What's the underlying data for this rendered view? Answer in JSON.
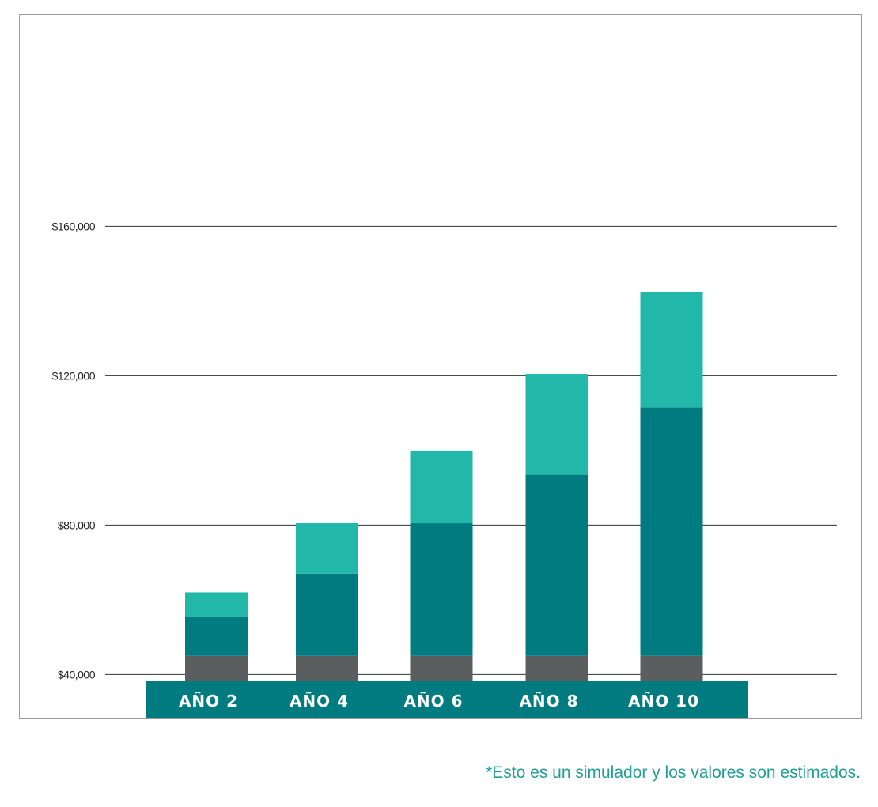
{
  "chart_data": {
    "type": "bar",
    "stacked": true,
    "categories": [
      "AÑO 2",
      "AÑO 4",
      "AÑO 6",
      "AÑO 8",
      "AÑO 10"
    ],
    "series": [
      {
        "color": "#5a5e5e",
        "values": [
          45000,
          45000,
          45000,
          45000,
          45000
        ]
      },
      {
        "color": "#007b7f",
        "values": [
          10500,
          22000,
          35500,
          48500,
          66500
        ]
      },
      {
        "color": "#21b8aa",
        "values": [
          6500,
          13500,
          19500,
          27000,
          31000
        ]
      }
    ],
    "y_ticks": [
      {
        "value": 40000,
        "label": "$40,000"
      },
      {
        "value": 80000,
        "label": "$80,000"
      },
      {
        "value": 120000,
        "label": "$120,000"
      },
      {
        "value": 160000,
        "label": "$160,000"
      }
    ],
    "ylim": [
      0,
      160000
    ],
    "grid": true,
    "category_band_color": "#007b7f",
    "title": "",
    "xlabel": "",
    "ylabel": ""
  },
  "footnote": "*Esto es un simulador y los valores son estimados."
}
